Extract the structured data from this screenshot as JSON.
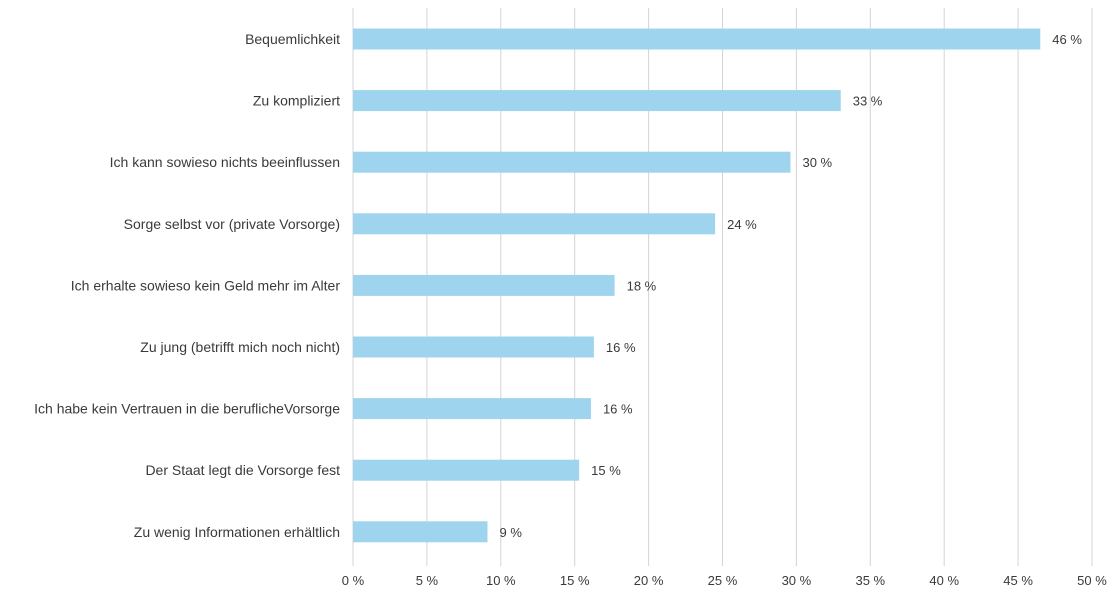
{
  "chart_data": {
    "type": "bar",
    "orientation": "horizontal",
    "categories": [
      "Bequemlichkeit",
      "Zu kompliziert",
      "Ich kann sowieso nichts beeinflussen",
      "Sorge selbst vor (private Vorsorge)",
      "Ich erhalte sowieso kein Geld mehr im Alter",
      "Zu jung (betrifft mich noch nicht)",
      "Ich habe kein Vertrauen in die beruflicheVorsorge",
      "Der Staat legt die Vorsorge fest",
      "Zu wenig Informationen erhältlich"
    ],
    "values": [
      46.5,
      33,
      29.6,
      24.5,
      17.7,
      16.3,
      16.1,
      15.3,
      9.1
    ],
    "value_labels": [
      "46 %",
      "33 %",
      "30 %",
      "24 %",
      "18 %",
      "16 %",
      "16 %",
      "15 %",
      "9 %"
    ],
    "x_ticks": [
      0,
      5,
      10,
      15,
      20,
      25,
      30,
      35,
      40,
      45,
      50
    ],
    "x_tick_labels": [
      "0 %",
      "5 %",
      "10 %",
      "15 %",
      "20 %",
      "25 %",
      "30 %",
      "35 %",
      "40 %",
      "45 %",
      "50 %"
    ],
    "xlim": [
      0,
      50
    ],
    "grid": "vertical",
    "legend": "none",
    "bar_color": "#9fd4ef",
    "grid_color": "#d4d4d4",
    "text_color": "#3a3a3a"
  }
}
